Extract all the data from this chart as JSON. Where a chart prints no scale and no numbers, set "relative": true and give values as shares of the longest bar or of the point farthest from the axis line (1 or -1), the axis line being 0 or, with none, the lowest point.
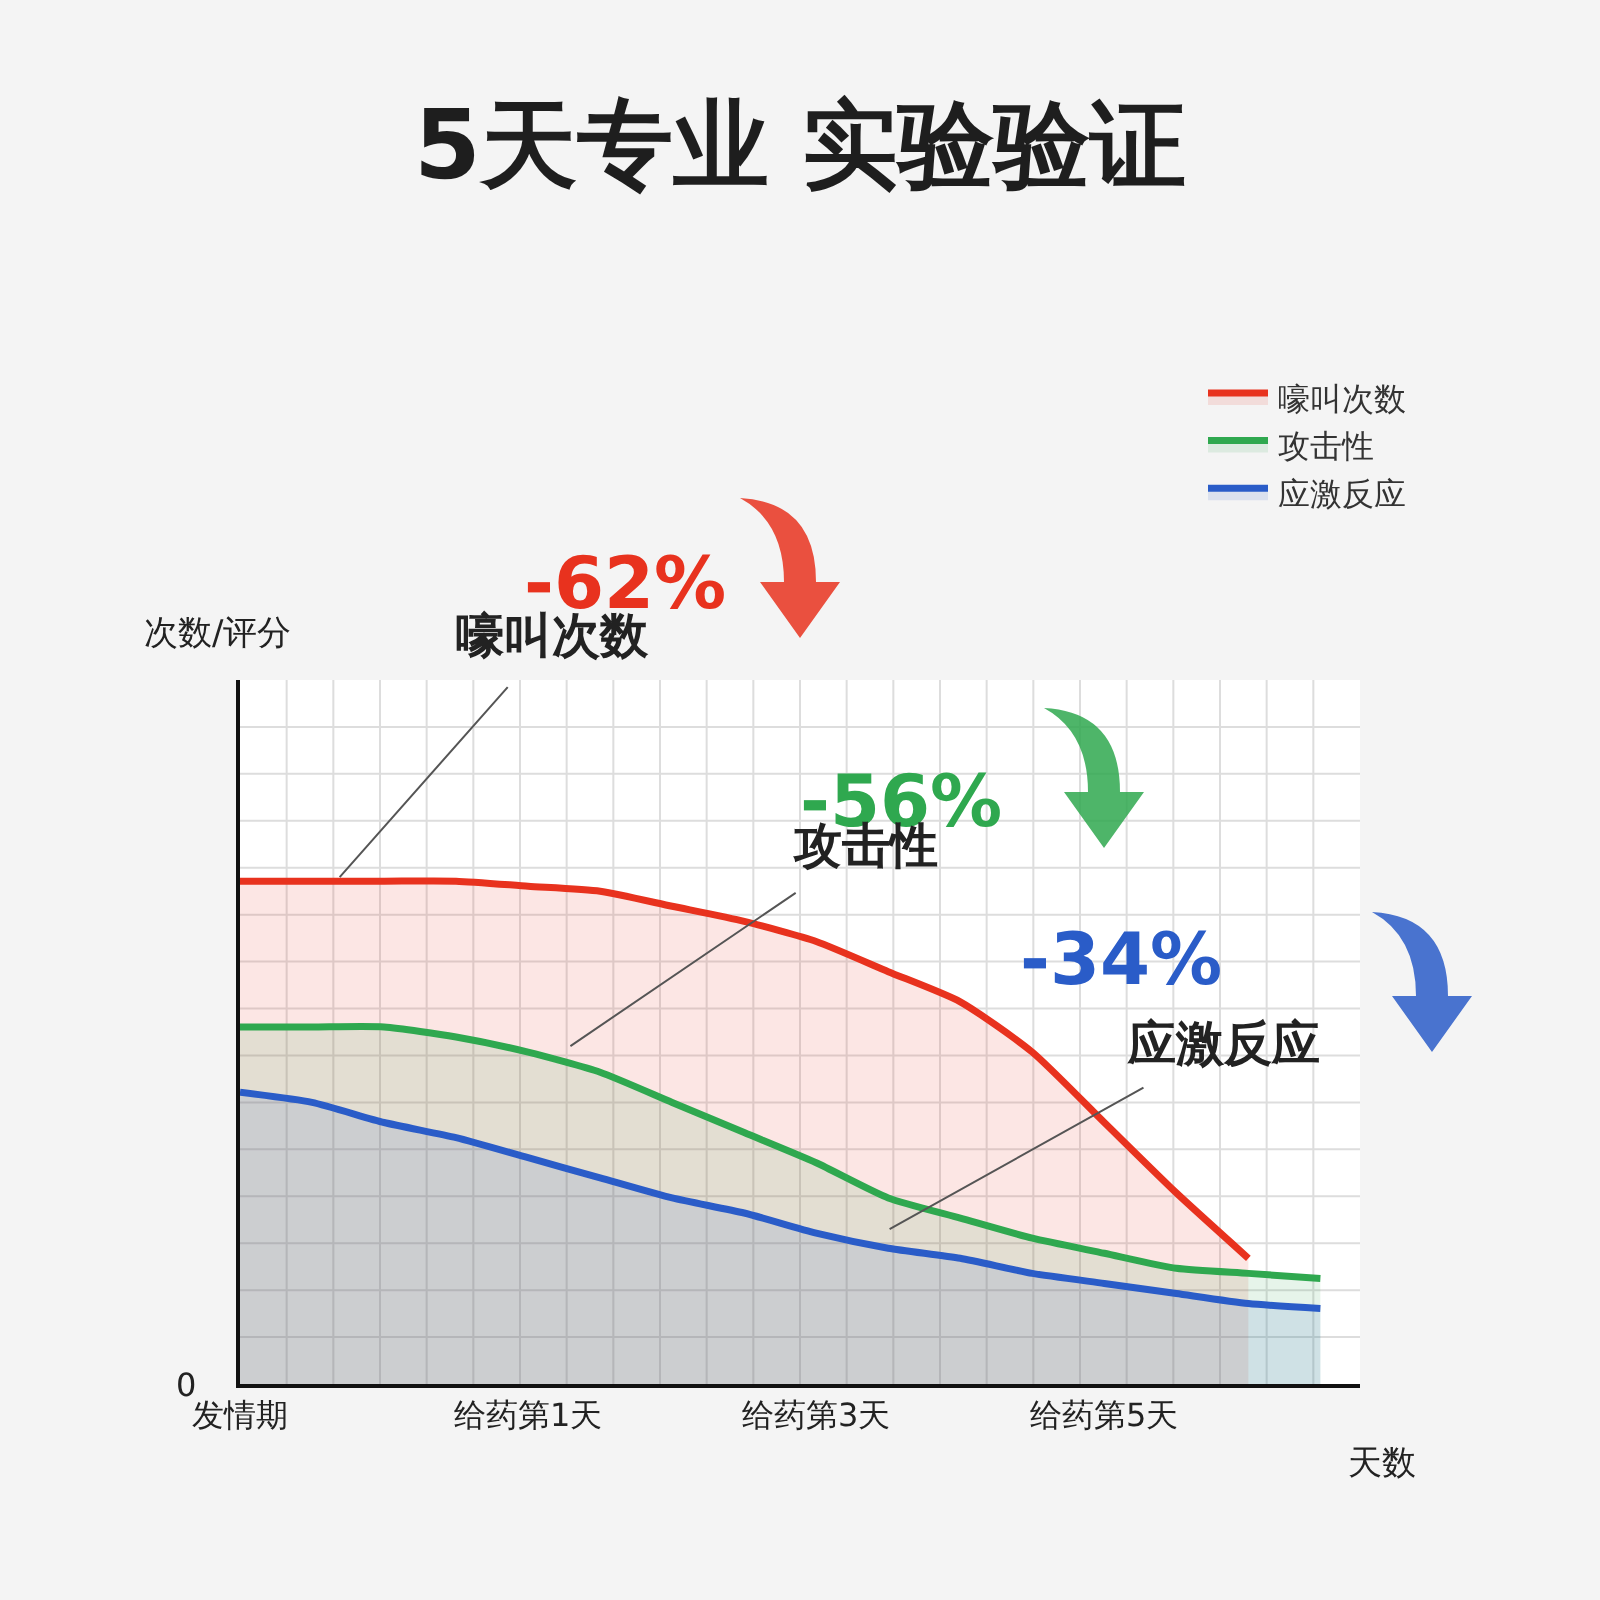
{
  "chart_data": {
    "type": "area",
    "title": "5天专业 实验验证",
    "xlabel": "天数",
    "relative": true,
    "categories": [
      "发情期",
      null,
      null,
      null,
      "给药第1天",
      null,
      null,
      null,
      "给药第3天",
      null,
      null,
      null,
      "给药第5天",
      null,
      null,
      null
    ],
    "series": [
      {
        "name": "嚎叫次数",
        "color": "#e8321e",
        "values": [
          1.0,
          1.0,
          1.0,
          1.0,
          0.99,
          0.98,
          0.95,
          0.92,
          0.88,
          0.82,
          0.76,
          0.66,
          0.52,
          0.38,
          0.25,
          null
        ]
      },
      {
        "name": "攻击性",
        "color": "#2fa84f",
        "values": [
          0.71,
          0.71,
          0.71,
          0.69,
          0.66,
          0.62,
          0.56,
          0.5,
          0.44,
          0.37,
          0.33,
          0.29,
          0.26,
          0.23,
          0.22,
          0.21
        ]
      },
      {
        "name": "应激反应",
        "color": "#2a5cc8",
        "values": [
          0.58,
          0.56,
          0.52,
          0.49,
          0.45,
          0.41,
          0.37,
          0.34,
          0.3,
          0.27,
          0.25,
          0.22,
          0.2,
          0.18,
          0.16,
          0.15
        ]
      }
    ],
    "annotations": [
      "-62%",
      "-56%",
      "-34%",
      "嚎叫次数",
      "攻击性",
      "应激反应",
      "0",
      "次数/评分"
    ],
    "grid": true,
    "legend": "top right",
    "marker": "none",
    "line_style": "solid"
  }
}
